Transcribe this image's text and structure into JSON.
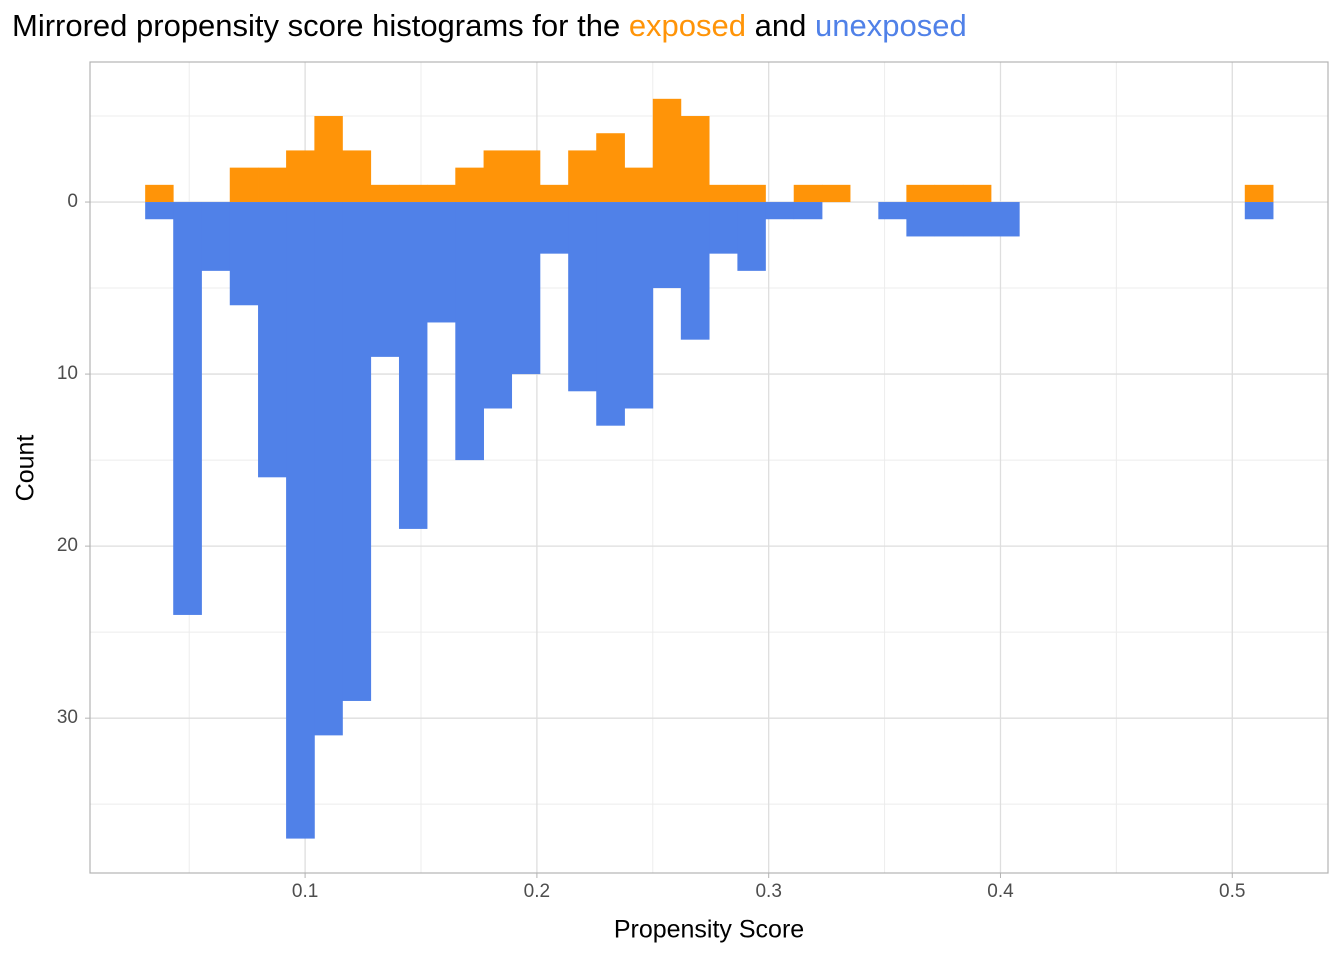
{
  "chart_data": {
    "type": "mirrored-histogram",
    "title": [
      "Mirrored propensity score histograms for the",
      "exposed",
      "and",
      "unexposed"
    ],
    "x_label": "Propensity Score",
    "y_label": "Count",
    "bins": [
      0.031,
      0.0431,
      0.0553,
      0.0675,
      0.0797,
      0.0918,
      0.104,
      0.1161,
      0.1283,
      0.1405,
      0.1526,
      0.1648,
      0.177,
      0.1891,
      0.2013,
      0.2135,
      0.2256,
      0.2378,
      0.25,
      0.2621,
      0.2743,
      0.2865,
      0.2986,
      0.3108,
      0.323,
      0.3351,
      0.3473,
      0.3594,
      0.3716,
      0.3838,
      0.3959,
      0.4081,
      0.4203,
      0.4324,
      0.4446,
      0.4568,
      0.4689,
      0.4811,
      0.4933,
      0.5054,
      0.5176
    ],
    "series": [
      {
        "name": "exposed",
        "color": "#ff9408",
        "values": [
          -1,
          0,
          0,
          -2,
          -2,
          -3,
          -5,
          -3,
          -1,
          -1,
          -1,
          -2,
          -3,
          -3,
          -1,
          -3,
          -4,
          -2,
          -6,
          -5,
          -1,
          -1,
          0,
          -1,
          -1,
          0,
          0,
          -1,
          -1,
          -1,
          0,
          0,
          0,
          0,
          0,
          0,
          0,
          0,
          0,
          -1
        ]
      },
      {
        "name": "unexposed",
        "color": "#5081e8",
        "values": [
          1,
          24,
          4,
          6,
          16,
          37,
          31,
          29,
          9,
          19,
          7,
          15,
          12,
          10,
          3,
          11,
          13,
          12,
          5,
          8,
          3,
          4,
          1,
          1,
          0,
          0,
          1,
          2,
          2,
          2,
          2,
          0,
          0,
          0,
          0,
          0,
          0,
          0,
          0,
          1
        ]
      }
    ],
    "xlim": [
      0.0072,
      0.5413
    ],
    "xticks": [
      0.1,
      0.2,
      0.3,
      0.4,
      0.5
    ],
    "xminor": [
      0.05,
      0.15,
      0.25,
      0.35,
      0.45
    ],
    "ylim": [
      -8.14,
      39.0
    ],
    "y_reversed": true,
    "yticks": [
      0,
      10,
      20,
      30
    ],
    "yminor": [
      -5,
      5,
      15,
      25,
      35
    ],
    "grid": true
  }
}
